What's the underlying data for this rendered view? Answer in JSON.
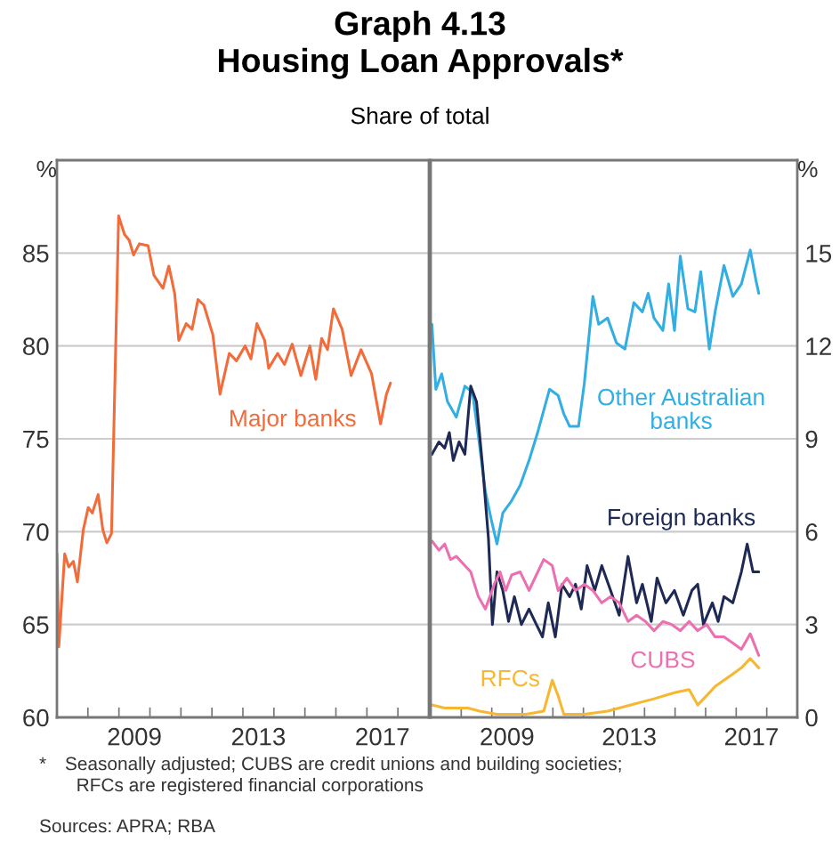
{
  "chart_data": [
    {
      "type": "line",
      "title": "Graph 4.13\nHousing Loan Approvals*",
      "subtitle": "Share of total",
      "ylabel": "%",
      "xlim": [
        2007,
        2019
      ],
      "ylim": [
        60,
        90
      ],
      "yticks": [
        60,
        65,
        70,
        75,
        80,
        85
      ],
      "xticks": [
        {
          "value": 2008,
          "label": null
        },
        {
          "value": 2009,
          "label": null
        },
        {
          "value": 2010,
          "label": null
        },
        {
          "value": 2011,
          "label": null
        },
        {
          "value": 2012,
          "label": null
        },
        {
          "value": 2013,
          "label": null
        },
        {
          "value": 2014,
          "label": null
        },
        {
          "value": 2015,
          "label": null
        },
        {
          "value": 2016,
          "label": null
        },
        {
          "value": 2017,
          "label": null
        },
        {
          "value": 2018,
          "label": null
        },
        {
          "value": 2009.5,
          "label": "2009"
        },
        {
          "value": 2013.5,
          "label": "2013"
        },
        {
          "value": 2017.5,
          "label": "2017"
        }
      ],
      "grid": "y",
      "legend": false,
      "series": [
        {
          "name": "Major banks",
          "color": "#f26b3a",
          "x": [
            2007.0,
            2007.06,
            2007.25,
            2007.38,
            2007.53,
            2007.66,
            2007.85,
            2008.01,
            2008.14,
            2008.33,
            2008.48,
            2008.61,
            2008.76,
            2008.99,
            2009.18,
            2009.33,
            2009.47,
            2009.66,
            2009.94,
            2010.13,
            2010.42,
            2010.61,
            2010.8,
            2010.93,
            2011.17,
            2011.36,
            2011.55,
            2011.74,
            2012.03,
            2012.26,
            2012.56,
            2012.79,
            2013.07,
            2013.26,
            2013.45,
            2013.7,
            2013.83,
            2014.12,
            2014.34,
            2014.59,
            2014.87,
            2015.16,
            2015.35,
            2015.54,
            2015.73,
            2015.92,
            2016.2,
            2016.49,
            2016.81,
            2017.15,
            2017.44,
            2017.63,
            2017.76
          ],
          "values": [
            68.8,
            63.8,
            68.8,
            68.1,
            68.4,
            67.3,
            70.1,
            71.3,
            71.0,
            72.0,
            70.1,
            69.4,
            69.9,
            87.0,
            86.0,
            85.7,
            84.9,
            85.5,
            85.4,
            83.8,
            83.1,
            84.3,
            82.8,
            80.3,
            81.2,
            80.9,
            82.5,
            82.2,
            80.6,
            77.4,
            79.6,
            79.2,
            80.0,
            79.3,
            81.2,
            80.3,
            78.8,
            79.6,
            79.0,
            80.1,
            78.4,
            80.0,
            78.2,
            80.4,
            79.8,
            82.0,
            80.9,
            78.4,
            79.8,
            78.5,
            75.8,
            77.4,
            78.0
          ]
        }
      ],
      "annotations": [
        "* Seasonally adjusted; CUBS are credit unions and building societies;\n  RFCs are registered financial corporations",
        "Sources: APRA; RBA"
      ]
    },
    {
      "type": "line",
      "ylabel": "%",
      "xlim": [
        2007,
        2019
      ],
      "ylim": [
        0,
        18
      ],
      "yticks": [
        0,
        3,
        6,
        9,
        12,
        15
      ],
      "xticks": [
        {
          "value": 2008,
          "label": null
        },
        {
          "value": 2009,
          "label": null
        },
        {
          "value": 2010,
          "label": null
        },
        {
          "value": 2011,
          "label": null
        },
        {
          "value": 2012,
          "label": null
        },
        {
          "value": 2013,
          "label": null
        },
        {
          "value": 2014,
          "label": null
        },
        {
          "value": 2015,
          "label": null
        },
        {
          "value": 2016,
          "label": null
        },
        {
          "value": 2017,
          "label": null
        },
        {
          "value": 2018,
          "label": null
        },
        {
          "value": 2009.5,
          "label": "2009"
        },
        {
          "value": 2013.5,
          "label": "2013"
        },
        {
          "value": 2017.5,
          "label": "2017"
        }
      ],
      "grid": "y",
      "legend": false,
      "series": [
        {
          "name": "Other Australian\nbanks",
          "color": "#33aee3",
          "x": [
            2007.04,
            2007.17,
            2007.36,
            2007.55,
            2007.84,
            2008.12,
            2008.37,
            2008.56,
            2008.79,
            2008.98,
            2009.17,
            2009.36,
            2009.65,
            2009.93,
            2010.22,
            2010.5,
            2010.89,
            2011.17,
            2011.36,
            2011.55,
            2011.84,
            2012.03,
            2012.31,
            2012.5,
            2012.79,
            2013.08,
            2013.36,
            2013.65,
            2013.93,
            2014.12,
            2014.31,
            2014.6,
            2014.79,
            2014.98,
            2015.17,
            2015.42,
            2015.65,
            2015.84,
            2016.12,
            2016.31,
            2016.6,
            2016.89,
            2017.17,
            2017.46,
            2017.65,
            2017.74
          ],
          "values": [
            12.7,
            10.6,
            11.1,
            10.2,
            9.7,
            10.7,
            10.5,
            9.1,
            7.3,
            6.4,
            5.6,
            6.6,
            7.0,
            7.5,
            8.3,
            9.2,
            10.6,
            10.4,
            9.8,
            9.4,
            9.4,
            10.8,
            13.6,
            12.7,
            12.9,
            12.1,
            11.9,
            13.4,
            13.1,
            13.7,
            12.9,
            12.5,
            14.0,
            12.5,
            14.9,
            13.2,
            13.1,
            14.4,
            11.9,
            13.1,
            14.6,
            13.6,
            14.0,
            15.1,
            14.1,
            13.7
          ]
        },
        {
          "name": "Foreign banks",
          "color": "#1e2a55",
          "x": [
            2007.04,
            2007.27,
            2007.46,
            2007.61,
            2007.74,
            2007.93,
            2008.12,
            2008.31,
            2008.5,
            2008.7,
            2008.89,
            2009.02,
            2009.17,
            2009.36,
            2009.55,
            2009.74,
            2009.97,
            2010.22,
            2010.41,
            2010.66,
            2010.85,
            2011.08,
            2011.3,
            2011.55,
            2011.74,
            2011.93,
            2012.12,
            2012.37,
            2012.6,
            2012.89,
            2013.17,
            2013.46,
            2013.74,
            2013.93,
            2014.22,
            2014.41,
            2014.7,
            2014.98,
            2015.27,
            2015.55,
            2015.74,
            2015.93,
            2016.22,
            2016.41,
            2016.6,
            2016.89,
            2017.17,
            2017.36,
            2017.55,
            2017.74
          ],
          "values": [
            8.5,
            8.9,
            8.7,
            9.2,
            8.3,
            8.9,
            8.5,
            10.7,
            10.2,
            8.1,
            5.8,
            3.0,
            4.7,
            4.1,
            3.1,
            3.9,
            3.0,
            3.5,
            3.1,
            2.6,
            3.7,
            2.6,
            4.3,
            3.9,
            4.3,
            3.5,
            4.9,
            4.1,
            4.9,
            4.1,
            3.3,
            5.2,
            3.7,
            4.3,
            3.1,
            4.5,
            3.7,
            4.1,
            3.3,
            4.1,
            4.3,
            3.0,
            3.7,
            3.1,
            3.9,
            3.7,
            4.7,
            5.6,
            4.7,
            4.7
          ]
        },
        {
          "name": "CUBS",
          "color": "#ec6fb0",
          "x": [
            2007.04,
            2007.27,
            2007.46,
            2007.65,
            2007.84,
            2008.12,
            2008.31,
            2008.56,
            2008.79,
            2009.08,
            2009.27,
            2009.46,
            2009.65,
            2009.93,
            2010.22,
            2010.41,
            2010.7,
            2010.98,
            2011.17,
            2011.46,
            2011.74,
            2012.03,
            2012.31,
            2012.6,
            2012.89,
            2013.17,
            2013.46,
            2013.74,
            2014.03,
            2014.31,
            2014.6,
            2014.89,
            2015.17,
            2015.46,
            2015.74,
            2016.03,
            2016.31,
            2016.6,
            2016.89,
            2017.17,
            2017.46,
            2017.74
          ],
          "values": [
            5.7,
            5.4,
            5.6,
            5.1,
            5.2,
            4.9,
            4.7,
            3.9,
            3.5,
            4.3,
            4.7,
            4.1,
            4.6,
            4.7,
            4.1,
            4.5,
            5.1,
            4.9,
            4.1,
            4.5,
            4.1,
            4.3,
            4.1,
            3.7,
            3.9,
            3.7,
            3.1,
            3.3,
            3.1,
            2.8,
            3.1,
            3.0,
            2.8,
            3.1,
            2.8,
            3.0,
            2.6,
            2.6,
            2.4,
            2.2,
            2.7,
            2.0
          ]
        },
        {
          "name": "RFCs",
          "color": "#f7b731",
          "x": [
            2007.04,
            2007.46,
            2008.22,
            2008.6,
            2009.17,
            2010.12,
            2010.7,
            2010.98,
            2011.17,
            2011.36,
            2012.03,
            2012.79,
            2013.55,
            2014.31,
            2014.98,
            2015.46,
            2015.74,
            2016.03,
            2016.31,
            2016.6,
            2016.89,
            2017.17,
            2017.46,
            2017.74
          ],
          "values": [
            0.4,
            0.3,
            0.3,
            0.2,
            0.1,
            0.1,
            0.2,
            1.2,
            0.7,
            0.1,
            0.1,
            0.2,
            0.4,
            0.6,
            0.8,
            0.9,
            0.4,
            0.7,
            1.0,
            1.2,
            1.4,
            1.6,
            1.9,
            1.6
          ]
        }
      ]
    }
  ]
}
